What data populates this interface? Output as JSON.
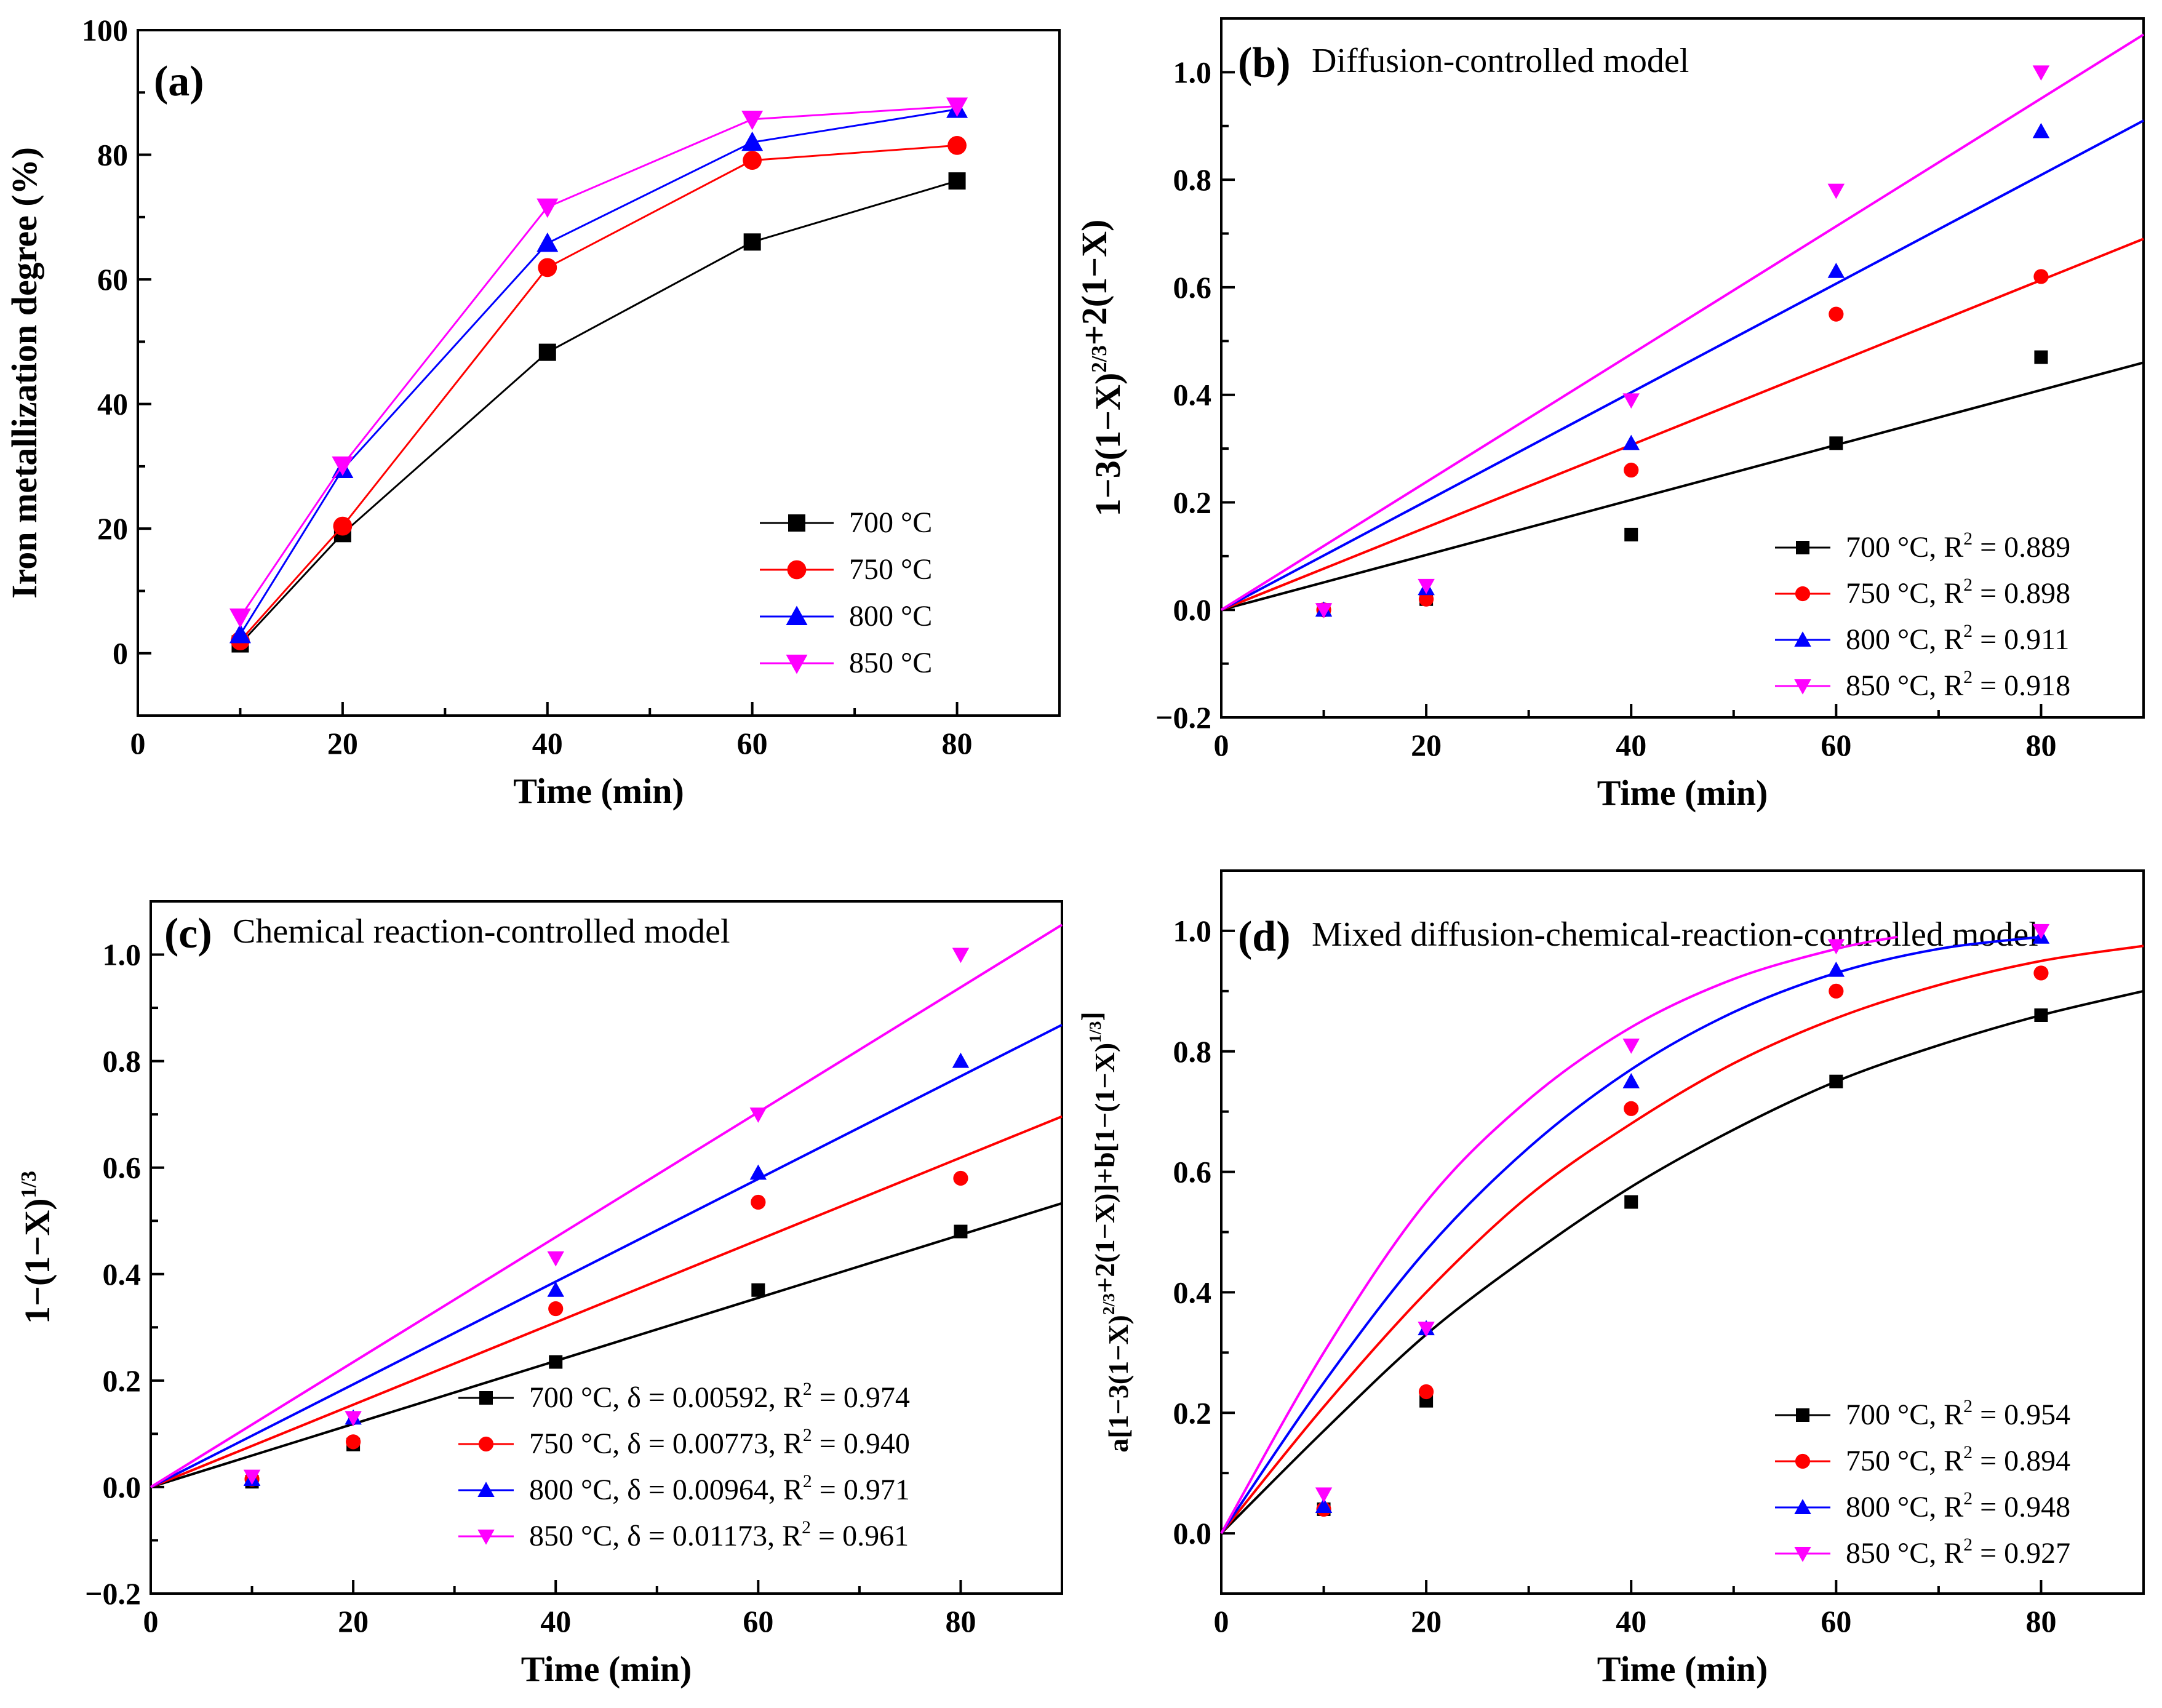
{
  "chart_data": [
    {
      "panel": "(a)",
      "type": "line",
      "title": "",
      "xlabel": "Time (min)",
      "ylabel": "Iron metallization degree (%)",
      "xlim": [
        0,
        90
      ],
      "ylim": [
        -10,
        100
      ],
      "xticks": [
        0,
        20,
        40,
        60,
        80
      ],
      "yticks": [
        0,
        20,
        40,
        60,
        80,
        100
      ],
      "grid": false,
      "legend_position": "bottom-right",
      "series": [
        {
          "name": "700 °C",
          "color": "#000000",
          "marker": "square",
          "x": [
            10,
            20,
            40,
            60,
            80
          ],
          "y": [
            1.5,
            19.2,
            48.3,
            66.0,
            75.8
          ]
        },
        {
          "name": "750 °C",
          "color": "#ff0000",
          "marker": "circle",
          "x": [
            10,
            20,
            40,
            60,
            80
          ],
          "y": [
            2.0,
            20.4,
            61.9,
            79.1,
            81.5
          ]
        },
        {
          "name": "800 °C",
          "color": "#0000ff",
          "marker": "triangle-up",
          "x": [
            10,
            20,
            40,
            60,
            80
          ],
          "y": [
            3.0,
            29.5,
            65.8,
            82.0,
            87.3
          ]
        },
        {
          "name": "850 °C",
          "color": "#ff00ff",
          "marker": "triangle-down",
          "x": [
            10,
            20,
            40,
            60,
            80
          ],
          "y": [
            5.8,
            30.2,
            71.6,
            85.7,
            87.8
          ]
        }
      ]
    },
    {
      "panel": "(b)",
      "type": "scatter",
      "title": "Diffusion-controlled model",
      "xlabel": "Time (min)",
      "ylabel": {
        "base": "1−3(1−X)",
        "sup": "2/3",
        "tail": "+2(1−X)"
      },
      "xlim": [
        0,
        90
      ],
      "ylim": [
        -0.2,
        1.1
      ],
      "xticks": [
        0,
        20,
        40,
        60,
        80
      ],
      "yticks": [
        -0.2,
        0.0,
        0.2,
        0.4,
        0.6,
        0.8,
        1.0
      ],
      "grid": false,
      "legend_position": "bottom-right",
      "series": [
        {
          "name": "700 °C, R² = 0.889",
          "label_pre": "700 °C, R",
          "label_post": " = 0.889",
          "color": "#000000",
          "marker": "square",
          "x": [
            10,
            20,
            40,
            60,
            80
          ],
          "y": [
            0.0,
            0.02,
            0.14,
            0.31,
            0.47
          ],
          "fit_y": [
            0.0,
            0.46
          ]
        },
        {
          "name": "750 °C, R² = 0.898",
          "label_pre": "750 °C, R",
          "label_post": " = 0.898",
          "color": "#ff0000",
          "marker": "circle",
          "x": [
            10,
            20,
            40,
            60,
            80
          ],
          "y": [
            0.0,
            0.02,
            0.26,
            0.55,
            0.62
          ],
          "fit_y": [
            0.0,
            0.69
          ]
        },
        {
          "name": "800 °C, R² = 0.911",
          "label_pre": "800 °C, R",
          "label_post": " = 0.911",
          "color": "#0000ff",
          "marker": "triangle-up",
          "x": [
            10,
            20,
            40,
            60,
            80
          ],
          "y": [
            0.0,
            0.04,
            0.31,
            0.63,
            0.89
          ],
          "fit_y": [
            0.0,
            0.91
          ]
        },
        {
          "name": "850 °C, R² = 0.918",
          "label_pre": "850 °C, R",
          "label_post": " = 0.918",
          "color": "#ff00ff",
          "marker": "triangle-down",
          "x": [
            10,
            20,
            40,
            60,
            80
          ],
          "y": [
            0.0,
            0.045,
            0.39,
            0.78,
            1.0
          ],
          "fit_y": [
            0.0,
            1.07
          ]
        }
      ]
    },
    {
      "panel": "(c)",
      "type": "scatter",
      "title": "Chemical reaction-controlled model",
      "xlabel": "Time (min)",
      "ylabel": {
        "base": "1−(1−X)",
        "sup": "1/3",
        "tail": ""
      },
      "xlim": [
        0,
        90
      ],
      "ylim": [
        -0.2,
        1.1
      ],
      "xticks": [
        0,
        20,
        40,
        60,
        80
      ],
      "yticks": [
        -0.2,
        0.0,
        0.2,
        0.4,
        0.6,
        0.8,
        1.0
      ],
      "grid": false,
      "legend_position": "bottom-right",
      "series": [
        {
          "name": "700 °C, δ = 0.00592, R² = 0.974",
          "label_pre": "700 °C, δ = 0.00592, R",
          "label_post": " = 0.974",
          "color": "#000000",
          "marker": "square",
          "x": [
            10,
            20,
            40,
            60,
            80
          ],
          "y": [
            0.01,
            0.08,
            0.235,
            0.37,
            0.48
          ],
          "fit_y": [
            0.0,
            0.533
          ]
        },
        {
          "name": "750 °C, δ = 0.00773, R² = 0.940",
          "label_pre": "750 °C, δ = 0.00773, R",
          "label_post": " = 0.940",
          "color": "#ff0000",
          "marker": "circle",
          "x": [
            10,
            20,
            40,
            60,
            80
          ],
          "y": [
            0.015,
            0.085,
            0.335,
            0.535,
            0.58
          ],
          "fit_y": [
            0.0,
            0.696
          ]
        },
        {
          "name": "800 °C, δ = 0.00964, R² = 0.971",
          "label_pre": "800 °C, δ = 0.00964, R",
          "label_post": " = 0.971",
          "color": "#0000ff",
          "marker": "triangle-up",
          "x": [
            10,
            20,
            40,
            60,
            80
          ],
          "y": [
            0.015,
            0.13,
            0.37,
            0.59,
            0.8
          ],
          "fit_y": [
            0.0,
            0.868
          ]
        },
        {
          "name": "850 °C, δ = 0.01173, R² = 0.961",
          "label_pre": "850 °C, δ = 0.01173, R",
          "label_post": " = 0.961",
          "color": "#ff00ff",
          "marker": "triangle-down",
          "x": [
            10,
            20,
            40,
            60,
            80
          ],
          "y": [
            0.02,
            0.13,
            0.43,
            0.7,
            1.0
          ],
          "fit_y": [
            0.0,
            1.056
          ]
        }
      ]
    },
    {
      "panel": "(d)",
      "type": "scatter",
      "title": "Mixed diffusion-chemical-reaction-controlled model",
      "xlabel": "Time (min)",
      "ylabel": {
        "base": "a[1−3(1−X)",
        "sup": "2/3",
        "mid": "+2(1−X)]+b[1−(1−X)",
        "sup2": "1/3",
        "tail": "]"
      },
      "xlim": [
        0,
        90
      ],
      "ylim": [
        -0.1,
        1.1
      ],
      "xticks": [
        0,
        20,
        40,
        60,
        80
      ],
      "yticks": [
        0.0,
        0.2,
        0.4,
        0.6,
        0.8,
        1.0
      ],
      "grid": false,
      "legend_position": "bottom-right",
      "series": [
        {
          "name": "700 °C, R² = 0.954",
          "label_pre": "700 °C, R",
          "label_post": " = 0.954",
          "color": "#000000",
          "marker": "square",
          "x": [
            10,
            20,
            40,
            60,
            80
          ],
          "y": [
            0.04,
            0.22,
            0.55,
            0.75,
            0.86
          ],
          "curve_x": [
            0,
            10,
            20,
            30,
            40,
            50,
            60,
            70,
            80,
            90
          ],
          "curve_y": [
            0.0,
            0.17,
            0.33,
            0.46,
            0.575,
            0.67,
            0.75,
            0.81,
            0.86,
            0.9
          ]
        },
        {
          "name": "750 °C, R² = 0.894",
          "label_pre": "750 °C, R",
          "label_post": " = 0.894",
          "color": "#ff0000",
          "marker": "circle",
          "x": [
            10,
            20,
            40,
            60,
            80
          ],
          "y": [
            0.04,
            0.235,
            0.705,
            0.9,
            0.93
          ],
          "curve_x": [
            0,
            10,
            20,
            30,
            40,
            50,
            60,
            70,
            80,
            90
          ],
          "curve_y": [
            0.0,
            0.21,
            0.4,
            0.56,
            0.68,
            0.78,
            0.855,
            0.91,
            0.95,
            0.975
          ]
        },
        {
          "name": "800 °C, R² = 0.948",
          "label_pre": "800 °C, R",
          "label_post": " = 0.948",
          "color": "#0000ff",
          "marker": "triangle-up",
          "x": [
            10,
            20,
            40,
            60,
            80
          ],
          "y": [
            0.045,
            0.34,
            0.75,
            0.935,
            0.99
          ],
          "curve_x": [
            0,
            10,
            20,
            30,
            40,
            50,
            60,
            70,
            80
          ],
          "curve_y": [
            0.0,
            0.25,
            0.47,
            0.64,
            0.77,
            0.865,
            0.93,
            0.97,
            0.99
          ]
        },
        {
          "name": "850 °C, R² = 0.927",
          "label_pre": "850 °C, R",
          "label_post": " = 0.927",
          "color": "#ff00ff",
          "marker": "triangle-down",
          "x": [
            10,
            20,
            40,
            60,
            80
          ],
          "y": [
            0.065,
            0.34,
            0.81,
            0.975,
            1.0
          ],
          "curve_x": [
            0,
            10,
            20,
            30,
            40,
            50,
            60,
            66
          ],
          "curve_y": [
            0.0,
            0.3,
            0.55,
            0.72,
            0.84,
            0.92,
            0.97,
            0.99
          ]
        }
      ]
    }
  ]
}
